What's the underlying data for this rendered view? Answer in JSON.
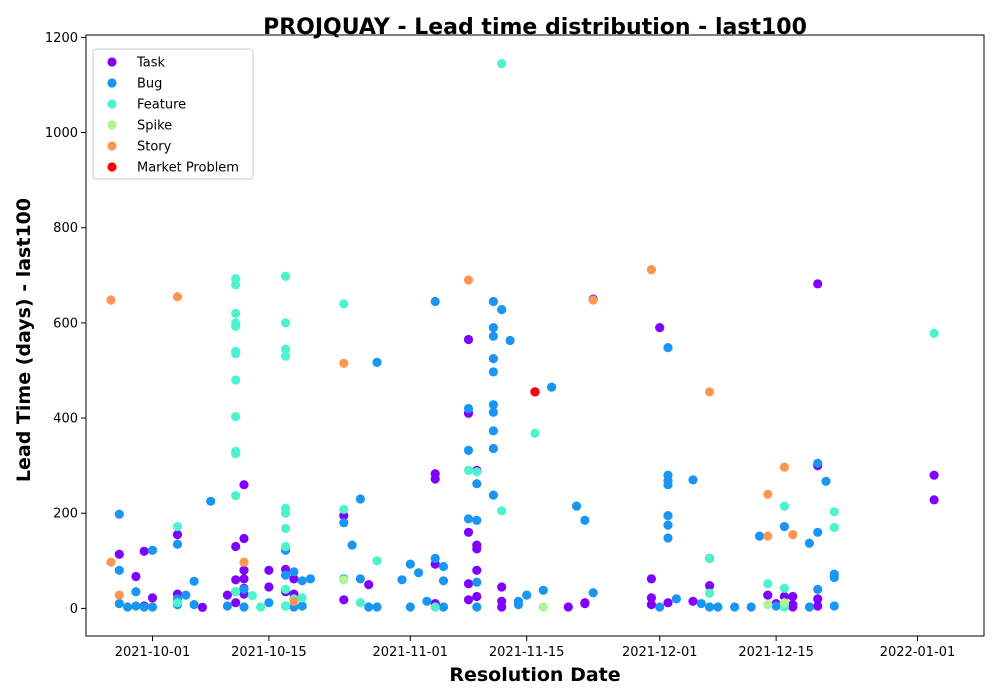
{
  "chart_data": {
    "type": "scatter",
    "title": "PROJQUAY - Lead time distribution - last100",
    "xlabel": "Resolution Date",
    "ylabel": "Lead Time (days) - last100",
    "x_type": "date",
    "xlim": [
      "2021-09-23",
      "2022-01-09"
    ],
    "ylim": [
      -58,
      1205
    ],
    "x_ticks": [
      "2021-10-01",
      "2021-10-15",
      "2021-11-01",
      "2021-11-15",
      "2021-12-01",
      "2021-12-15",
      "2022-01-01"
    ],
    "y_ticks": [
      0,
      200,
      400,
      600,
      800,
      1000,
      1200
    ],
    "legend_position": "top-left",
    "grid": false,
    "series": [
      {
        "name": "Task",
        "color": "#8000ff",
        "points": [
          [
            "2021-09-27",
            114
          ],
          [
            "2021-09-29",
            67
          ],
          [
            "2021-09-30",
            120
          ],
          [
            "2021-10-01",
            22
          ],
          [
            "2021-09-30",
            5
          ],
          [
            "2021-10-04",
            155
          ],
          [
            "2021-10-04",
            30
          ],
          [
            "2021-10-07",
            2
          ],
          [
            "2021-10-10",
            28
          ],
          [
            "2021-10-11",
            130
          ],
          [
            "2021-10-11",
            60
          ],
          [
            "2021-10-11",
            12
          ],
          [
            "2021-10-12",
            260
          ],
          [
            "2021-10-12",
            147
          ],
          [
            "2021-10-12",
            80
          ],
          [
            "2021-10-12",
            62
          ],
          [
            "2021-10-12",
            42
          ],
          [
            "2021-10-12",
            30
          ],
          [
            "2021-10-15",
            80
          ],
          [
            "2021-10-15",
            45
          ],
          [
            "2021-10-17",
            35
          ],
          [
            "2021-10-17",
            82
          ],
          [
            "2021-10-18",
            62
          ],
          [
            "2021-10-18",
            30
          ],
          [
            "2021-10-24",
            195
          ],
          [
            "2021-10-24",
            18
          ],
          [
            "2021-10-27",
            50
          ],
          [
            "2021-11-04",
            283
          ],
          [
            "2021-11-04",
            272
          ],
          [
            "2021-11-04",
            93
          ],
          [
            "2021-11-04",
            10
          ],
          [
            "2021-11-08",
            565
          ],
          [
            "2021-11-08",
            410
          ],
          [
            "2021-11-08",
            160
          ],
          [
            "2021-11-08",
            52
          ],
          [
            "2021-11-08",
            18
          ],
          [
            "2021-11-09",
            290
          ],
          [
            "2021-11-09",
            133
          ],
          [
            "2021-11-09",
            125
          ],
          [
            "2021-11-09",
            80
          ],
          [
            "2021-11-09",
            25
          ],
          [
            "2021-11-12",
            45
          ],
          [
            "2021-11-12",
            15
          ],
          [
            "2021-11-12",
            3
          ],
          [
            "2021-11-16",
            455
          ],
          [
            "2021-11-20",
            3
          ],
          [
            "2021-11-22",
            12
          ],
          [
            "2021-11-22",
            10
          ],
          [
            "2021-11-23",
            650
          ],
          [
            "2021-11-30",
            62
          ],
          [
            "2021-11-30",
            22
          ],
          [
            "2021-11-30",
            8
          ],
          [
            "2021-12-01",
            590
          ],
          [
            "2021-12-02",
            12
          ],
          [
            "2021-12-05",
            15
          ],
          [
            "2021-12-07",
            48
          ],
          [
            "2021-12-07",
            105
          ],
          [
            "2021-12-14",
            28
          ],
          [
            "2021-12-15",
            10
          ],
          [
            "2021-12-16",
            25
          ],
          [
            "2021-12-17",
            25
          ],
          [
            "2021-12-17",
            8
          ],
          [
            "2021-12-17",
            3
          ],
          [
            "2021-12-20",
            682
          ],
          [
            "2021-12-20",
            300
          ],
          [
            "2021-12-20",
            20
          ],
          [
            "2021-12-20",
            5
          ],
          [
            "2022-01-03",
            280
          ],
          [
            "2022-01-03",
            228
          ]
        ]
      },
      {
        "name": "Bug",
        "color": "#1996f3",
        "points": [
          [
            "2021-09-27",
            198
          ],
          [
            "2021-09-27",
            80
          ],
          [
            "2021-09-27",
            10
          ],
          [
            "2021-09-28",
            3
          ],
          [
            "2021-09-29",
            35
          ],
          [
            "2021-09-29",
            5
          ],
          [
            "2021-09-30",
            3
          ],
          [
            "2021-10-01",
            122
          ],
          [
            "2021-10-01",
            3
          ],
          [
            "2021-10-04",
            135
          ],
          [
            "2021-10-04",
            20
          ],
          [
            "2021-10-04",
            8
          ],
          [
            "2021-10-05",
            28
          ],
          [
            "2021-10-06",
            57
          ],
          [
            "2021-10-06",
            8
          ],
          [
            "2021-10-08",
            225
          ],
          [
            "2021-10-10",
            5
          ],
          [
            "2021-10-11",
            35
          ],
          [
            "2021-10-12",
            40
          ],
          [
            "2021-10-12",
            3
          ],
          [
            "2021-10-15",
            12
          ],
          [
            "2021-10-17",
            122
          ],
          [
            "2021-10-17",
            70
          ],
          [
            "2021-10-17",
            5
          ],
          [
            "2021-10-18",
            77
          ],
          [
            "2021-10-18",
            3
          ],
          [
            "2021-10-19",
            58
          ],
          [
            "2021-10-19",
            5
          ],
          [
            "2021-10-20",
            62
          ],
          [
            "2021-10-24",
            180
          ],
          [
            "2021-10-24",
            62
          ],
          [
            "2021-10-25",
            133
          ],
          [
            "2021-10-26",
            230
          ],
          [
            "2021-10-26",
            62
          ],
          [
            "2021-10-27",
            3
          ],
          [
            "2021-10-28",
            517
          ],
          [
            "2021-10-28",
            3
          ],
          [
            "2021-10-31",
            60
          ],
          [
            "2021-11-01",
            93
          ],
          [
            "2021-11-01",
            3
          ],
          [
            "2021-11-02",
            75
          ],
          [
            "2021-11-03",
            15
          ],
          [
            "2021-11-04",
            645
          ],
          [
            "2021-11-04",
            105
          ],
          [
            "2021-11-05",
            88
          ],
          [
            "2021-11-05",
            58
          ],
          [
            "2021-11-05",
            3
          ],
          [
            "2021-11-08",
            420
          ],
          [
            "2021-11-08",
            332
          ],
          [
            "2021-11-08",
            188
          ],
          [
            "2021-11-09",
            262
          ],
          [
            "2021-11-09",
            185
          ],
          [
            "2021-11-09",
            55
          ],
          [
            "2021-11-09",
            3
          ],
          [
            "2021-11-11",
            645
          ],
          [
            "2021-11-11",
            590
          ],
          [
            "2021-11-11",
            572
          ],
          [
            "2021-11-11",
            525
          ],
          [
            "2021-11-11",
            497
          ],
          [
            "2021-11-11",
            428
          ],
          [
            "2021-11-11",
            412
          ],
          [
            "2021-11-11",
            373
          ],
          [
            "2021-11-11",
            336
          ],
          [
            "2021-11-11",
            238
          ],
          [
            "2021-11-12",
            628
          ],
          [
            "2021-11-13",
            563
          ],
          [
            "2021-11-14",
            15
          ],
          [
            "2021-11-14",
            8
          ],
          [
            "2021-11-15",
            28
          ],
          [
            "2021-11-17",
            38
          ],
          [
            "2021-11-18",
            465
          ],
          [
            "2021-11-21",
            215
          ],
          [
            "2021-11-22",
            185
          ],
          [
            "2021-11-23",
            33
          ],
          [
            "2021-12-01",
            3
          ],
          [
            "2021-12-02",
            548
          ],
          [
            "2021-12-02",
            280
          ],
          [
            "2021-12-02",
            268
          ],
          [
            "2021-12-02",
            260
          ],
          [
            "2021-12-02",
            195
          ],
          [
            "2021-12-02",
            175
          ],
          [
            "2021-12-02",
            148
          ],
          [
            "2021-12-03",
            20
          ],
          [
            "2021-12-05",
            270
          ],
          [
            "2021-12-06",
            10
          ],
          [
            "2021-12-07",
            3
          ],
          [
            "2021-12-08",
            3
          ],
          [
            "2021-12-10",
            3
          ],
          [
            "2021-12-12",
            3
          ],
          [
            "2021-12-13",
            152
          ],
          [
            "2021-12-15",
            5
          ],
          [
            "2021-12-16",
            8
          ],
          [
            "2021-12-16",
            172
          ],
          [
            "2021-12-19",
            137
          ],
          [
            "2021-12-19",
            3
          ],
          [
            "2021-12-20",
            160
          ],
          [
            "2021-12-20",
            40
          ],
          [
            "2021-12-20",
            305
          ],
          [
            "2021-12-21",
            267
          ],
          [
            "2021-12-22",
            72
          ],
          [
            "2021-12-22",
            65
          ],
          [
            "2021-12-22",
            5
          ]
        ]
      },
      {
        "name": "Feature",
        "color": "#4df3ce",
        "points": [
          [
            "2021-10-04",
            172
          ],
          [
            "2021-10-04",
            12
          ],
          [
            "2021-10-11",
            693
          ],
          [
            "2021-10-11",
            680
          ],
          [
            "2021-10-11",
            620
          ],
          [
            "2021-10-11",
            600
          ],
          [
            "2021-10-11",
            593
          ],
          [
            "2021-10-11",
            540
          ],
          [
            "2021-10-11",
            535
          ],
          [
            "2021-10-11",
            480
          ],
          [
            "2021-10-11",
            403
          ],
          [
            "2021-10-11",
            330
          ],
          [
            "2021-10-11",
            325
          ],
          [
            "2021-10-11",
            237
          ],
          [
            "2021-10-11",
            35
          ],
          [
            "2021-10-13",
            27
          ],
          [
            "2021-10-14",
            3
          ],
          [
            "2021-10-17",
            698
          ],
          [
            "2021-10-17",
            600
          ],
          [
            "2021-10-17",
            545
          ],
          [
            "2021-10-17",
            530
          ],
          [
            "2021-10-17",
            210
          ],
          [
            "2021-10-17",
            200
          ],
          [
            "2021-10-17",
            168
          ],
          [
            "2021-10-17",
            130
          ],
          [
            "2021-10-17",
            40
          ],
          [
            "2021-10-17",
            5
          ],
          [
            "2021-10-18",
            20
          ],
          [
            "2021-10-19",
            22
          ],
          [
            "2021-10-24",
            640
          ],
          [
            "2021-10-24",
            208
          ],
          [
            "2021-10-24",
            60
          ],
          [
            "2021-10-26",
            12
          ],
          [
            "2021-10-28",
            100
          ],
          [
            "2021-11-04",
            3
          ],
          [
            "2021-11-08",
            290
          ],
          [
            "2021-11-09",
            287
          ],
          [
            "2021-11-12",
            1145
          ],
          [
            "2021-11-12",
            205
          ],
          [
            "2021-11-16",
            368
          ],
          [
            "2021-11-17",
            3
          ],
          [
            "2021-12-07",
            32
          ],
          [
            "2021-12-07",
            105
          ],
          [
            "2021-12-14",
            52
          ],
          [
            "2021-12-16",
            215
          ],
          [
            "2021-12-16",
            42
          ],
          [
            "2021-12-16",
            8
          ],
          [
            "2021-12-16",
            3
          ],
          [
            "2021-12-22",
            203
          ],
          [
            "2021-12-22",
            170
          ],
          [
            "2022-01-03",
            578
          ]
        ]
      },
      {
        "name": "Spike",
        "color": "#b3f396",
        "points": [
          [
            "2021-10-24",
            60
          ],
          [
            "2021-11-17",
            3
          ],
          [
            "2021-12-14",
            8
          ],
          [
            "2021-12-16",
            12
          ]
        ]
      },
      {
        "name": "Story",
        "color": "#ff964e",
        "points": [
          [
            "2021-09-26",
            97
          ],
          [
            "2021-09-26",
            648
          ],
          [
            "2021-09-27",
            28
          ],
          [
            "2021-10-04",
            655
          ],
          [
            "2021-10-12",
            97
          ],
          [
            "2021-10-18",
            15
          ],
          [
            "2021-10-24",
            515
          ],
          [
            "2021-11-08",
            690
          ],
          [
            "2021-11-23",
            648
          ],
          [
            "2021-11-30",
            712
          ],
          [
            "2021-12-07",
            455
          ],
          [
            "2021-12-14",
            240
          ],
          [
            "2021-12-14",
            152
          ],
          [
            "2021-12-16",
            297
          ],
          [
            "2021-12-17",
            155
          ]
        ]
      },
      {
        "name": "Market Problem",
        "color": "#ff0000",
        "points": [
          [
            "2021-11-16",
            455
          ]
        ]
      }
    ]
  }
}
